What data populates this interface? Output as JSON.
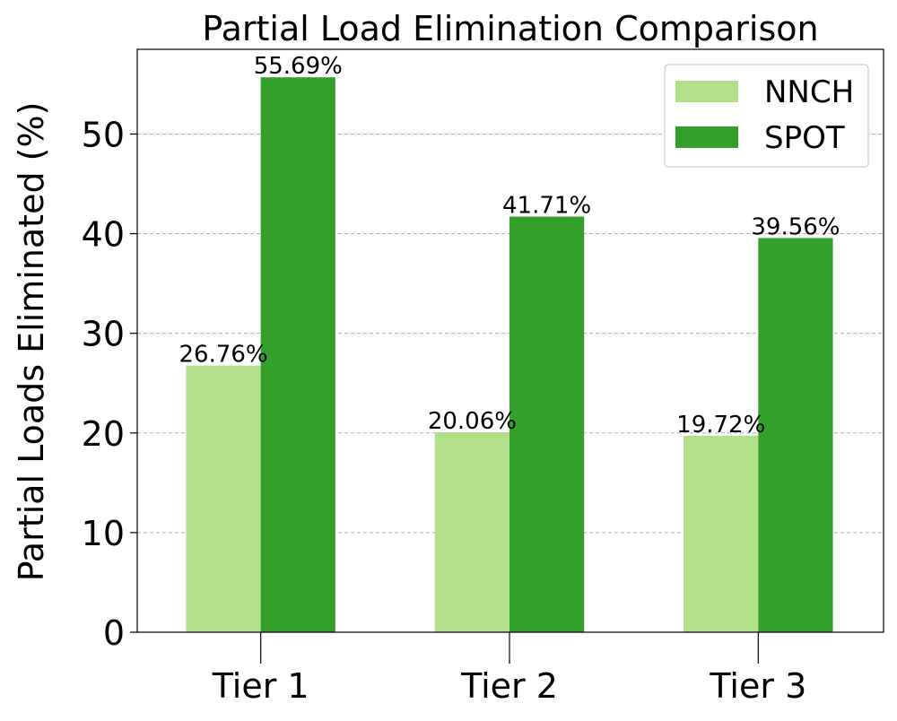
{
  "chart_data": {
    "type": "bar",
    "title": "Partial Load Elimination Comparison",
    "xlabel": "",
    "ylabel": "Partial Loads Eliminated (%)",
    "categories": [
      "Tier 1",
      "Tier 2",
      "Tier 3"
    ],
    "series": [
      {
        "name": "NNCH",
        "color": "#b2df8a",
        "values": [
          26.76,
          20.06,
          19.72
        ],
        "labels": [
          "26.76%",
          "20.06%",
          "19.72%"
        ]
      },
      {
        "name": "SPOT",
        "color": "#33a02c",
        "values": [
          55.69,
          41.71,
          39.56
        ],
        "labels": [
          "55.69%",
          "41.71%",
          "39.56%"
        ]
      }
    ],
    "ylim": [
      0,
      58.5
    ],
    "yticks": [
      0,
      10,
      20,
      30,
      40,
      50
    ],
    "ytick_labels": [
      "0",
      "10",
      "20",
      "30",
      "40",
      "50"
    ],
    "grid": "y-dashed",
    "legend_position": "top-right"
  }
}
